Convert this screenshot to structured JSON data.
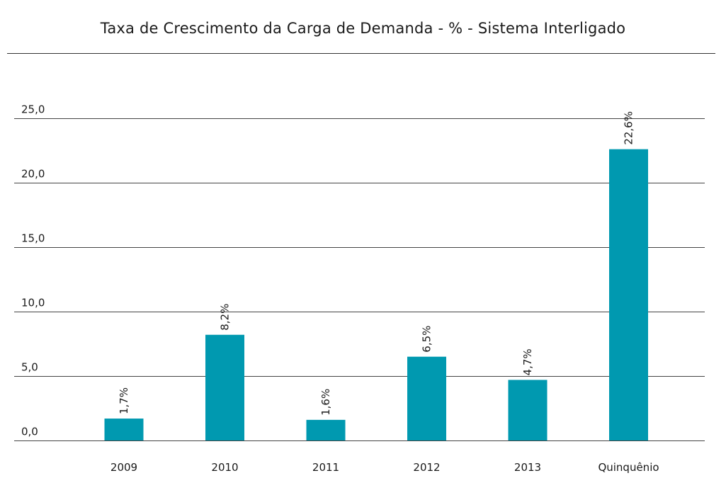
{
  "colors": {
    "bar": "#0099b0",
    "grid": "#444444",
    "text": "#1a1a1a"
  },
  "chart_data": {
    "type": "bar",
    "title": "Taxa de Crescimento da Carga de Demanda - % - Sistema Interligado",
    "xlabel": "",
    "ylabel": "",
    "categories": [
      "2009",
      "2010",
      "2011",
      "2012",
      "2013",
      "Quinquênio"
    ],
    "values": [
      1.7,
      8.2,
      1.6,
      6.5,
      4.7,
      22.6
    ],
    "data_labels": [
      "1,7%",
      "8,2%",
      "1,6%",
      "6,5%",
      "4,7%",
      "22,6%"
    ],
    "yticks": [
      "0,0",
      "5,0",
      "10,0",
      "15,0",
      "20,0",
      "25,0"
    ],
    "ytick_values": [
      0,
      5,
      10,
      15,
      20,
      25
    ],
    "ylim": [
      0,
      25
    ],
    "grid": true,
    "legend": "none"
  }
}
